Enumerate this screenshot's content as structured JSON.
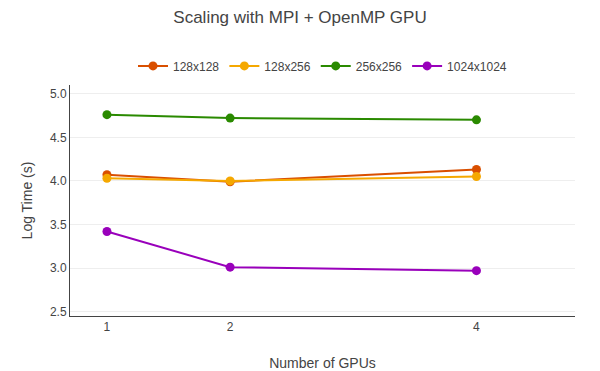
{
  "chart_data": {
    "type": "line",
    "title": "Scaling with MPI + OpenMP GPU",
    "x_label": "Number of GPUs",
    "y_label": "Log Time (s)",
    "x": [
      1,
      2,
      4
    ],
    "series": [
      {
        "name": "128x128",
        "color": "#d94f00",
        "values": [
          4.07,
          3.99,
          4.13
        ]
      },
      {
        "name": "128x256",
        "color": "#f5a800",
        "values": [
          4.03,
          4.0,
          4.05
        ]
      },
      {
        "name": "256x256",
        "color": "#2a8a00",
        "values": [
          4.76,
          4.72,
          4.7
        ]
      },
      {
        "name": "1024x1024",
        "color": "#9900bb",
        "values": [
          3.42,
          3.01,
          2.97
        ]
      }
    ],
    "xlim": [
      0.7,
      4.8
    ],
    "ylim": [
      2.45,
      5.1
    ],
    "xticks": [
      1,
      2,
      4
    ],
    "yticks": [
      2.5,
      {
        "value": 3.0,
        "label": "3.0"
      },
      3.5,
      {
        "value": 4.0,
        "label": "4.0"
      },
      4.5,
      {
        "value": 5.0,
        "label": "5.0"
      }
    ],
    "grid": "y",
    "legend": "top",
    "marker": "circle"
  }
}
